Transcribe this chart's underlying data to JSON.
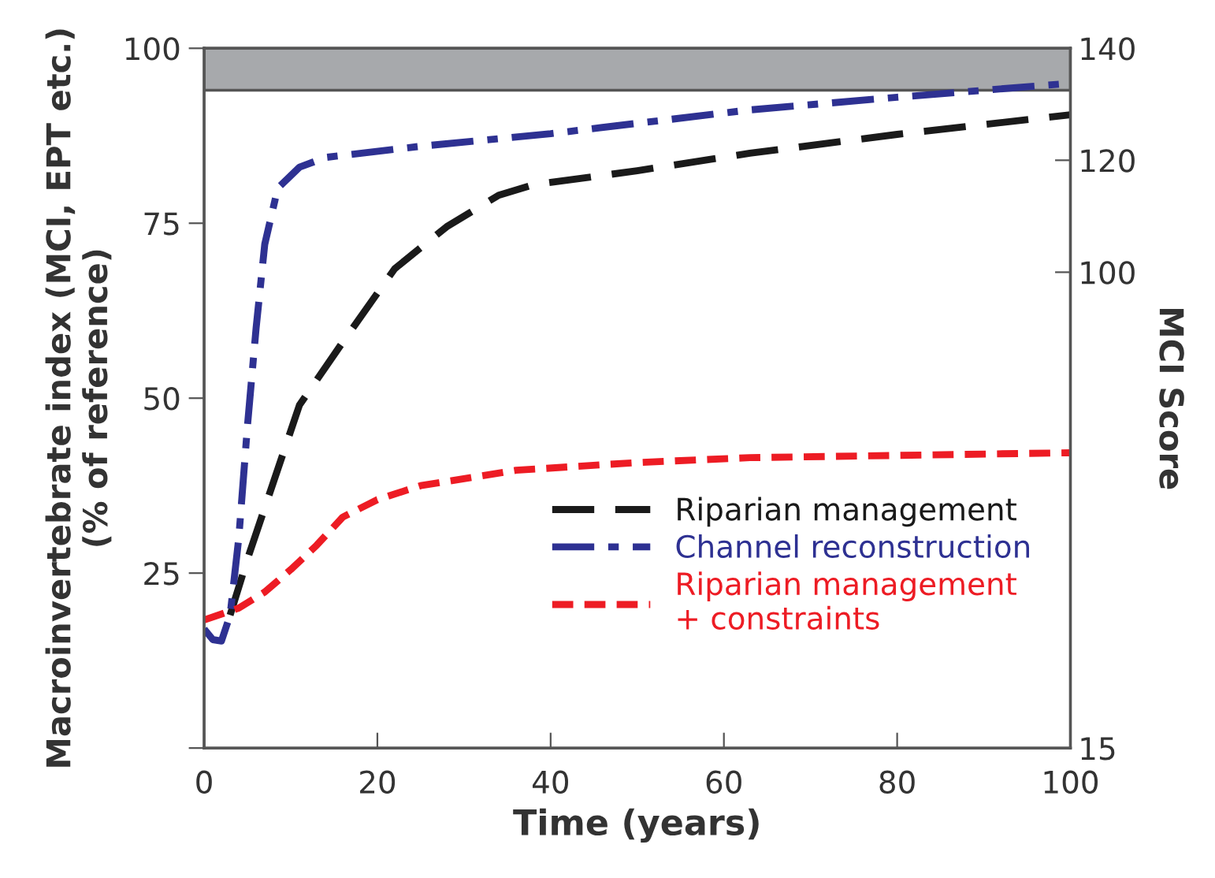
{
  "chart_data": {
    "type": "line",
    "xlabel": "Time (years)",
    "ylabel": "Macroinvertebrate index (MCI, EPT etc.)\n(% of reference)",
    "y2label": "MCI Score",
    "xlim": [
      0,
      100
    ],
    "xticks": [
      0,
      20,
      40,
      60,
      80,
      100
    ],
    "ylim": [
      0,
      100
    ],
    "yticks": [
      {
        "value": 0,
        "label": null
      },
      25,
      50,
      75,
      100
    ],
    "y2lim": [
      15,
      140
    ],
    "y2ticks": [
      15,
      100,
      120,
      140
    ],
    "bands": [
      {
        "axis": "y",
        "from": 94,
        "to": 100,
        "color": "#a7a9ac"
      }
    ],
    "grid": false,
    "legend": "bottom right",
    "marker": "none",
    "series": [
      {
        "name": "Riparian management",
        "color": "#1a1a1a",
        "line_style": "dashed",
        "x": [
          3,
          5,
          8,
          11,
          16,
          22,
          28,
          34,
          38,
          50,
          63,
          80,
          100
        ],
        "values": [
          19,
          27,
          38,
          49,
          58,
          68.5,
          74.5,
          79,
          80.5,
          82.5,
          85,
          87.7,
          90.5
        ]
      },
      {
        "name": "Channel reconstruction",
        "color": "#2e3192",
        "line_style": "dashdot",
        "x": [
          0,
          1,
          2,
          3,
          4,
          5,
          6,
          7,
          8.5,
          11,
          14,
          25,
          40,
          63,
          80,
          100
        ],
        "values": [
          17,
          15.5,
          15.3,
          19,
          30,
          46,
          60,
          72,
          80,
          83,
          84.4,
          86,
          87.8,
          91.2,
          93,
          95
        ]
      },
      {
        "name": "Riparian management\n+ constraints",
        "color": "#ed1c24",
        "line_style": "dotted",
        "x": [
          0,
          4,
          7,
          10,
          13,
          16,
          20,
          25,
          36,
          50,
          63,
          100
        ],
        "values": [
          18.3,
          20,
          22.3,
          25.5,
          29,
          33,
          35.5,
          37.5,
          39.7,
          40.8,
          41.5,
          42.2
        ]
      }
    ]
  }
}
